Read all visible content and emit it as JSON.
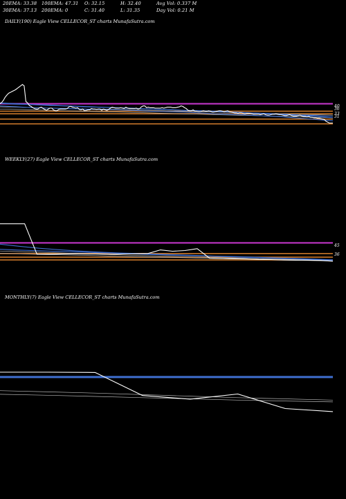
{
  "header": {
    "stats": [
      {
        "label": "20EMA: 33.38"
      },
      {
        "label": "100EMA: 47.31"
      },
      {
        "label": "O: 32.15"
      },
      {
        "label": "H: 32.40"
      },
      {
        "label": "Avg Vol: 0.337 M"
      },
      {
        "label": "30EMA: 37.13"
      },
      {
        "label": "200EMA: 0"
      },
      {
        "label": "C: 31.40"
      },
      {
        "label": "L: 31.35"
      },
      {
        "label": "Day Vol: 0.21 M"
      }
    ]
  },
  "colors": {
    "background": "#000000",
    "price": "#ffffff",
    "ema_blue": "#3f6fd1",
    "resistance": "#c035c7",
    "support": "#c8762a",
    "band": "#b5b5b5"
  },
  "chart_data": [
    {
      "type": "line",
      "title": "DAILY(190) Eagle  View  CELLECOR_ST charts MunafaSutra.com",
      "y_direction": "price",
      "level_labels": [
        "40",
        "36",
        "33",
        "31"
      ],
      "series": [
        {
          "role": "price",
          "values": [
            35.8,
            36.1,
            36.6,
            37.3,
            37.8,
            38.2,
            38.4,
            38.6,
            38.8,
            39.0,
            39.3,
            39.6,
            39.9,
            40.2,
            39.9,
            36.3,
            36.0,
            35.4,
            35.2,
            34.9,
            34.7,
            34.6,
            34.6,
            34.9,
            35.0,
            34.7,
            34.5,
            34.3,
            34.6,
            34.8,
            34.8,
            34.4,
            34.2,
            34.2,
            34.5,
            34.6,
            34.6,
            34.6,
            34.6,
            34.7,
            35.1,
            35.2,
            35.0,
            34.9,
            34.8,
            34.9,
            34.5,
            34.4,
            34.6,
            34.2,
            34.3,
            34.4,
            34.4,
            34.7,
            34.6,
            34.6,
            34.5,
            34.6,
            34.6,
            34.3,
            34.6,
            34.4,
            34.3,
            34.5,
            34.8,
            35.0,
            34.9,
            34.8,
            34.8,
            34.8,
            34.9,
            34.8,
            34.7,
            35.0,
            34.8,
            34.7,
            34.7,
            34.7,
            34.7,
            34.8,
            34.6,
            34.7,
            35.1,
            35.3,
            35.3,
            34.9,
            35.0,
            34.9,
            34.9,
            34.9,
            34.8,
            34.8,
            34.8,
            34.8,
            34.9,
            34.8,
            34.9,
            35.0,
            35.0,
            35.0,
            34.9,
            34.9,
            34.9,
            35.0,
            35.1,
            35.3,
            35.2,
            34.9,
            34.7,
            34.3,
            34.2,
            34.2,
            34.4,
            34.1,
            34.1,
            34.0,
            34.0,
            34.1,
            34.2,
            34.1,
            34.1,
            34.2,
            34.1,
            33.9,
            33.9,
            34.0,
            34.1,
            34.2,
            34.2,
            34.1,
            34.0,
            34.1,
            34.2,
            34.0,
            33.9,
            33.8,
            33.7,
            33.7,
            33.6,
            33.7,
            33.7,
            33.6,
            33.5,
            33.6,
            33.6,
            33.6,
            33.5,
            33.4,
            33.4,
            33.4,
            33.4,
            33.3,
            33.4,
            33.5,
            33.3,
            33.2,
            33.2,
            33.3,
            33.4,
            33.4,
            33.5,
            33.4,
            33.3,
            33.3,
            33.2,
            33.1,
            33.1,
            33.2,
            33.3,
            33.1,
            33.0,
            33.0,
            33.0,
            33.1,
            33.2,
            33.0,
            32.9,
            32.9,
            32.8,
            32.9,
            32.7,
            32.7,
            32.6,
            32.6,
            32.5,
            32.5,
            32.4,
            32.3,
            32.2,
            31.8,
            31.6,
            31.4,
            31.4,
            31.4
          ]
        },
        {
          "role": "ema",
          "values": [
            35.3,
            35.1,
            34.9,
            34.8,
            34.7,
            34.6,
            34.5,
            34.4,
            34.3,
            34.1,
            34.0,
            33.9,
            33.7,
            33.5,
            33.4,
            33.2,
            33.0,
            32.8,
            32.5,
            32.2,
            31.9
          ]
        },
        {
          "role": "ema",
          "values": [
            35.9,
            35.7,
            35.6,
            35.4,
            35.3,
            35.1,
            35.0,
            34.9,
            34.7,
            34.6,
            34.5,
            34.3,
            34.2,
            34.0,
            33.9,
            33.7,
            33.5,
            33.3,
            33.1,
            32.9,
            32.6
          ]
        },
        {
          "role": "ema",
          "values": [
            36.0,
            35.8,
            35.6,
            35.5,
            35.3,
            35.2,
            35.0,
            34.9,
            34.8,
            34.6,
            34.5,
            34.3,
            34.2,
            34.1,
            33.9,
            33.7,
            33.6,
            33.4,
            33.2,
            33.1,
            32.9
          ]
        },
        {
          "role": "band",
          "values": [
            35.1,
            35.0,
            34.9,
            34.8,
            34.7,
            34.6,
            34.6,
            34.5,
            34.4,
            34.3,
            34.2,
            34.1,
            34.0,
            33.9,
            33.8,
            33.7,
            33.6,
            33.5,
            33.4,
            33.3,
            33.2
          ]
        },
        {
          "role": "band",
          "values": [
            34.6,
            34.5,
            34.4,
            34.3,
            34.2,
            34.1,
            34.0,
            33.9,
            33.8,
            33.7,
            33.6,
            33.5,
            33.4,
            33.3,
            33.2,
            33.1,
            33.0,
            32.9,
            32.8,
            32.7,
            32.6
          ]
        }
      ],
      "levels": [
        {
          "role": "resistance",
          "value": 35.8
        },
        {
          "role": "support",
          "value": 34.1
        },
        {
          "role": "support",
          "value": 33.5
        },
        {
          "role": "support",
          "value": 32.3
        },
        {
          "role": "support",
          "value": 31.2
        }
      ]
    },
    {
      "type": "line",
      "title": "WEEKLY(27) Eagle  View  CELLECOR_ST charts MunafaSutra.com",
      "y_direction": "price",
      "level_labels": [
        "45",
        "36"
      ],
      "series": [
        {
          "role": "price",
          "values": [
            57.6,
            57.6,
            57.6,
            43.3,
            43.3,
            43.4,
            43.4,
            43.4,
            43.4,
            43.2,
            43.4,
            43.5,
            43.6,
            45.3,
            44.7,
            45.0,
            45.9,
            41.4,
            41.3,
            41.2,
            41.1,
            40.9,
            40.8,
            40.6,
            40.5,
            40.5,
            40.4,
            40.0
          ]
        },
        {
          "role": "ema",
          "values": [
            48.0,
            47.0,
            46.1,
            45.4,
            44.8,
            44.3,
            43.9,
            43.6,
            43.3,
            43.0,
            42.7,
            42.4,
            42.2,
            41.9,
            41.6,
            41.3,
            41.0,
            40.7
          ]
        },
        {
          "role": "ema",
          "values": [
            45.6,
            45.2,
            44.9,
            44.6,
            44.3,
            44.0,
            43.7,
            43.4,
            43.1,
            42.8,
            42.6,
            42.3,
            42.0,
            41.7,
            41.4,
            41.1,
            40.8,
            40.5
          ]
        },
        {
          "role": "band",
          "values": [
            44.8,
            44.5,
            44.2,
            43.9,
            43.6,
            43.3,
            43.0,
            42.7,
            42.5,
            42.2,
            42.0,
            41.7,
            41.5,
            41.2,
            41.0,
            40.8,
            40.6,
            40.4
          ]
        },
        {
          "role": "band",
          "values": [
            43.7,
            43.5,
            43.2,
            43.0,
            42.8,
            42.6,
            42.3,
            42.1,
            41.9,
            41.7,
            41.5,
            41.3,
            41.1,
            40.9,
            40.7,
            40.5,
            40.3,
            40.1
          ]
        }
      ],
      "levels": [
        {
          "role": "resistance",
          "value": 48.6
        },
        {
          "role": "support",
          "value": 43.6
        },
        {
          "role": "support",
          "value": 41.9
        },
        {
          "role": "support",
          "value": 40.6
        }
      ]
    },
    {
      "type": "line",
      "title": "MONTHLY(7) Eagle  View  CELLECOR_ST charts MunafaSutra.com",
      "y_direction": "price",
      "level_labels": [],
      "series": [
        {
          "role": "price",
          "values": [
            50.4,
            50.4,
            50.3,
            42.7,
            41.5,
            43.2,
            38.4,
            37.4
          ]
        },
        {
          "role": "band",
          "values": [
            44.3,
            43.9,
            43.5,
            43.0,
            42.5,
            42.0,
            41.6,
            41.2
          ]
        },
        {
          "role": "band",
          "values": [
            43.1,
            42.8,
            42.4,
            42.0,
            41.6,
            41.2,
            40.9,
            40.6
          ]
        }
      ],
      "levels": [
        {
          "role": "ema_level",
          "value": 48.8
        }
      ]
    }
  ]
}
